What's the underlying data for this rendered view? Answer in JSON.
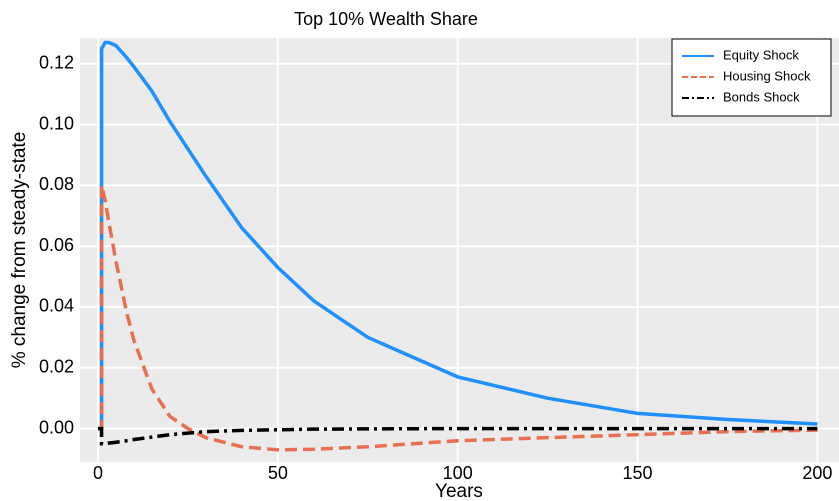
{
  "chart_data": {
    "type": "line",
    "title": "Top 10% Wealth Share",
    "x_label": "Years",
    "y_label": "% change from steady-state",
    "x": [
      0,
      1,
      1,
      2,
      3,
      5,
      8,
      10,
      15,
      20,
      25,
      30,
      40,
      50,
      60,
      75,
      100,
      125,
      150,
      175,
      200
    ],
    "series": [
      {
        "name": "Equity Shock",
        "color": "#1e90ff",
        "dash": "solid",
        "values": [
          0,
          0,
          0.125,
          0.127,
          0.127,
          0.126,
          0.122,
          0.119,
          0.111,
          0.101,
          0.092,
          0.083,
          0.066,
          0.053,
          0.042,
          0.03,
          0.017,
          0.01,
          0.005,
          0.003,
          0.0015
        ]
      },
      {
        "name": "Housing Shock",
        "color": "#e8704f",
        "dash": "dashed",
        "values": [
          0,
          0,
          0.08,
          0.075,
          0.068,
          0.055,
          0.038,
          0.029,
          0.013,
          0.004,
          0,
          -0.003,
          -0.006,
          -0.007,
          -0.0068,
          -0.006,
          -0.004,
          -0.003,
          -0.002,
          -0.001,
          -0.0005
        ]
      },
      {
        "name": "Bonds Shock",
        "color": "#000000",
        "dash": "dashdot",
        "values": [
          0,
          0,
          -0.005,
          -0.005,
          -0.0048,
          -0.0045,
          -0.004,
          -0.0036,
          -0.0028,
          -0.002,
          -0.0015,
          -0.001,
          -0.0006,
          -0.0004,
          -0.0002,
          -0.0001,
          0,
          0,
          0,
          0,
          0
        ]
      }
    ],
    "xlim": [
      -5,
      206
    ],
    "xticks": [
      0,
      50,
      100,
      150,
      200
    ],
    "ylim": [
      -0.011,
      0.1285
    ],
    "yticks": [
      {
        "value": 0,
        "label": "0.00"
      },
      0.02,
      0.04,
      0.06,
      0.08,
      {
        "value": 0.1,
        "label": "0.10"
      },
      0.12
    ],
    "grid": true,
    "legend": "upper right"
  }
}
